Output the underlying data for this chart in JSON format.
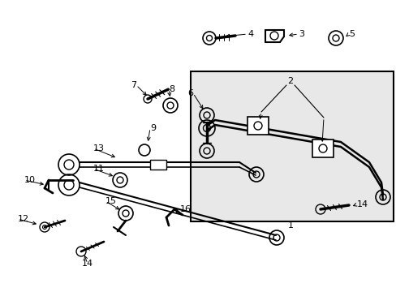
{
  "bg_color": "#ffffff",
  "box_bg": "#e8e8e8",
  "box_border": "#000000",
  "line_color": "#000000",
  "text_color": "#000000",
  "figw": 4.89,
  "figh": 3.6,
  "dpi": 100
}
